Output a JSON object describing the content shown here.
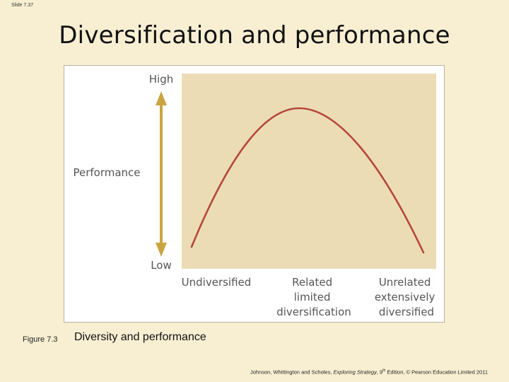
{
  "slide": {
    "number_label": "Slide 7.37"
  },
  "title": "Diversification and performance",
  "figure": {
    "y_axis_label": "Performance",
    "y_high": "High",
    "y_low": "Low",
    "x_categories": [
      {
        "lines": [
          "Undiversified"
        ]
      },
      {
        "lines": [
          "Related",
          "limited",
          "diversification"
        ]
      },
      {
        "lines": [
          "Unrelated",
          "extensively",
          "diversified"
        ]
      }
    ],
    "colors": {
      "panel": "#ecdcb5",
      "curve": "#b5483b",
      "arrow": "#c9a441",
      "text": "#555555"
    }
  },
  "caption": {
    "number": "Figure 7.3",
    "text": "Diversity and performance"
  },
  "credit": {
    "authors": "Johnson, Whittington and Scholes,",
    "book": "Exploring Strategy",
    "edition_num": ", 9",
    "edition_sup": "th",
    "rest": " Edition, © Pearson Education Limited 2011"
  }
}
